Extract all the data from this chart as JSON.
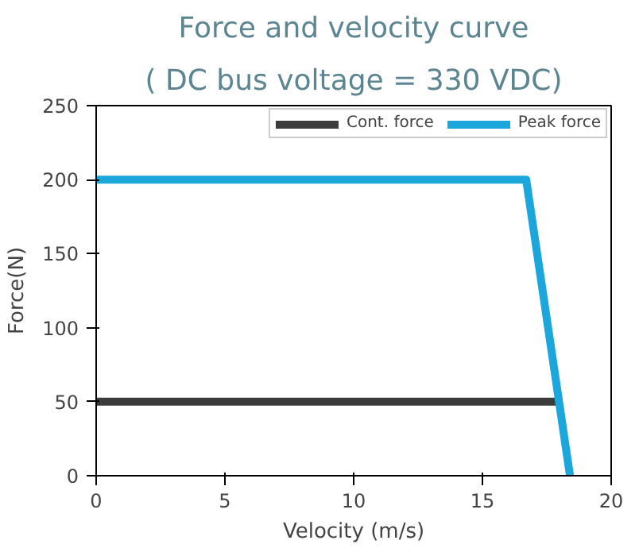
{
  "chart_data": {
    "type": "line",
    "title": "Force and velocity curve",
    "subtitle": "( DC bus voltage = 330 VDC)",
    "xlabel": "Velocity (m/s)",
    "ylabel": "Force(N)",
    "xlim": [
      0,
      20
    ],
    "ylim": [
      0,
      250
    ],
    "xticks": [
      0,
      5,
      10,
      15,
      20
    ],
    "yticks": [
      0,
      50,
      100,
      150,
      200,
      250
    ],
    "grid": false,
    "legend": "top right",
    "line_style": "solid",
    "marker": "none",
    "series": [
      {
        "name": "Cont. force",
        "color": "#3c3c3c",
        "x": [
          0,
          18.1
        ],
        "values": [
          50,
          50
        ]
      },
      {
        "name": "Peak force",
        "color": "#1ba6dc",
        "x": [
          0,
          16.7,
          18.4
        ],
        "values": [
          200,
          200,
          0
        ]
      }
    ]
  }
}
